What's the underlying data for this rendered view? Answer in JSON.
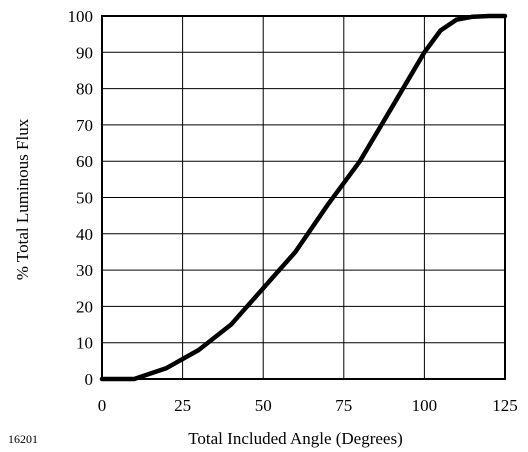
{
  "chart_data": {
    "type": "line",
    "title": "",
    "xlabel": "Total Included Angle (Degrees)",
    "ylabel": "% Total Luminous Flux",
    "xlim": [
      0,
      125
    ],
    "ylim": [
      0,
      100
    ],
    "xticks": [
      0,
      25,
      50,
      75,
      100,
      125
    ],
    "xtick_labels": [
      "0",
      "25",
      "50",
      "75",
      "100",
      "125"
    ],
    "yticks": [
      0,
      10,
      20,
      30,
      40,
      50,
      60,
      70,
      80,
      90,
      100
    ],
    "ytick_labels": [
      "0",
      "10",
      "20",
      "30",
      "40",
      "50",
      "60",
      "70",
      "80",
      "90",
      "100"
    ],
    "grid": true,
    "legend": "none",
    "line_color": "#000000",
    "series": [
      {
        "x": [
          0,
          10,
          20,
          30,
          40,
          50,
          60,
          70,
          80,
          90,
          100,
          105,
          110,
          115,
          120,
          125
        ],
        "values": [
          0,
          0,
          3,
          8,
          15,
          25,
          35,
          48,
          60,
          75,
          90,
          96,
          99,
          99.8,
          100,
          100
        ]
      }
    ]
  },
  "figure_id": "16201"
}
